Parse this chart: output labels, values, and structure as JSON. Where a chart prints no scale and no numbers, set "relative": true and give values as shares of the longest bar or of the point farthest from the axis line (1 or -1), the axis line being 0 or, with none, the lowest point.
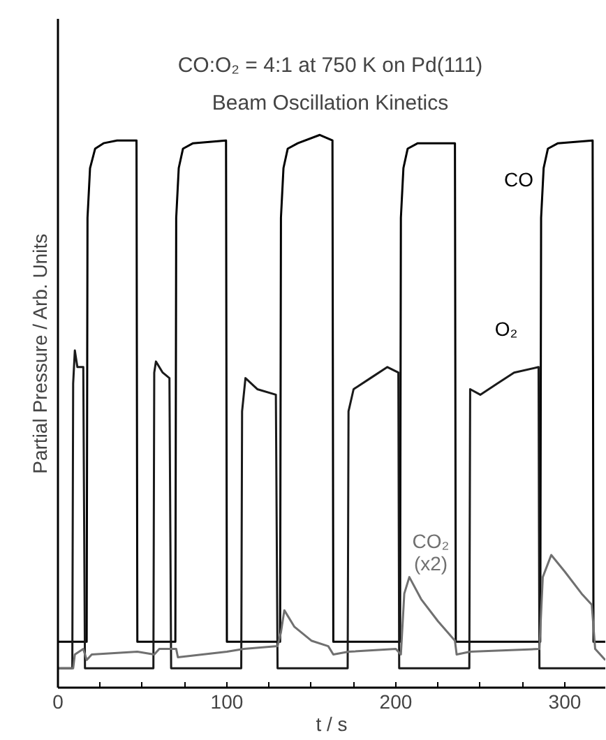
{
  "chart_data": {
    "type": "line",
    "relative": true,
    "title": "CO:O₂ = 4:1 at 750 K on Pd(111)",
    "subtitle": "Beam Oscillation Kinetics",
    "xlabel": "t / s",
    "ylabel": "Partial Pressure / Arb. Units",
    "xlim": [
      0,
      324
    ],
    "xticks": [
      0,
      {
        "value": 25,
        "label": null
      },
      {
        "value": 50,
        "label": null
      },
      {
        "value": 75,
        "label": null
      },
      100,
      {
        "value": 125,
        "label": null
      },
      {
        "value": 150,
        "label": null
      },
      {
        "value": 175,
        "label": null
      },
      200,
      {
        "value": 225,
        "label": null
      },
      {
        "value": 250,
        "label": null
      },
      {
        "value": 275,
        "label": null
      },
      300
    ],
    "grid": false,
    "marker": "none",
    "line_style": "solid",
    "series": [
      {
        "color": "#000000",
        "x": [
          0,
          17,
          17.5,
          19,
          22,
          27,
          35,
          46.5,
          47,
          69.5,
          70,
          71.5,
          74,
          80,
          99.5,
          100,
          131.5,
          132,
          133.5,
          136,
          142,
          155,
          162.5,
          163,
          202.5,
          203,
          204.5,
          207,
          213,
          235,
          235.5,
          285.5,
          286,
          287.5,
          290,
          296,
          316.5,
          317,
          324
        ],
        "values": [
          0.083,
          0.083,
          0.85,
          0.94,
          0.975,
          0.985,
          0.99,
          0.99,
          0.083,
          0.083,
          0.85,
          0.94,
          0.975,
          0.985,
          0.99,
          0.083,
          0.083,
          0.85,
          0.94,
          0.975,
          0.985,
          1.0,
          0.99,
          0.083,
          0.083,
          0.85,
          0.94,
          0.975,
          0.985,
          0.985,
          0.083,
          0.083,
          0.85,
          0.94,
          0.975,
          0.985,
          0.99,
          0.083,
          0.083
        ]
      },
      {
        "color": "#1a1a1a",
        "x": [
          0,
          8.5,
          9,
          10,
          11.5,
          15,
          16,
          56.5,
          57,
          58,
          62,
          66,
          67,
          108.5,
          109,
          111,
          118,
          129,
          130,
          171.5,
          172,
          175,
          185,
          195,
          201.5,
          202,
          243.5,
          244,
          250,
          260,
          270,
          284.5,
          285,
          324
        ],
        "values": [
          0.035,
          0.035,
          0.55,
          0.61,
          0.58,
          0.58,
          0.035,
          0.035,
          0.57,
          0.59,
          0.57,
          0.56,
          0.035,
          0.035,
          0.5,
          0.56,
          0.54,
          0.53,
          0.035,
          0.035,
          0.5,
          0.54,
          0.56,
          0.58,
          0.57,
          0.035,
          0.035,
          0.54,
          0.53,
          0.55,
          0.57,
          0.58,
          0.035,
          0.035
        ]
      },
      {
        "color": "#707070",
        "x": [
          0,
          9,
          10,
          15,
          17,
          20,
          47,
          57,
          60,
          70,
          71,
          100,
          110,
          130,
          132,
          134,
          140,
          150,
          160,
          163,
          172,
          200,
          203,
          205,
          208,
          215,
          225,
          235,
          236,
          244,
          285,
          287,
          292,
          300,
          310,
          316,
          318,
          324
        ],
        "values": [
          0.035,
          0.035,
          0.06,
          0.07,
          0.05,
          0.06,
          0.065,
          0.06,
          0.07,
          0.07,
          0.055,
          0.065,
          0.07,
          0.075,
          0.1,
          0.14,
          0.11,
          0.085,
          0.075,
          0.06,
          0.065,
          0.07,
          0.06,
          0.17,
          0.2,
          0.16,
          0.12,
          0.085,
          0.06,
          0.065,
          0.07,
          0.2,
          0.24,
          0.21,
          0.17,
          0.15,
          0.07,
          0.05
        ]
      }
    ],
    "annotations": [
      "CO",
      "O₂",
      "CO₂",
      "(x2)"
    ]
  }
}
